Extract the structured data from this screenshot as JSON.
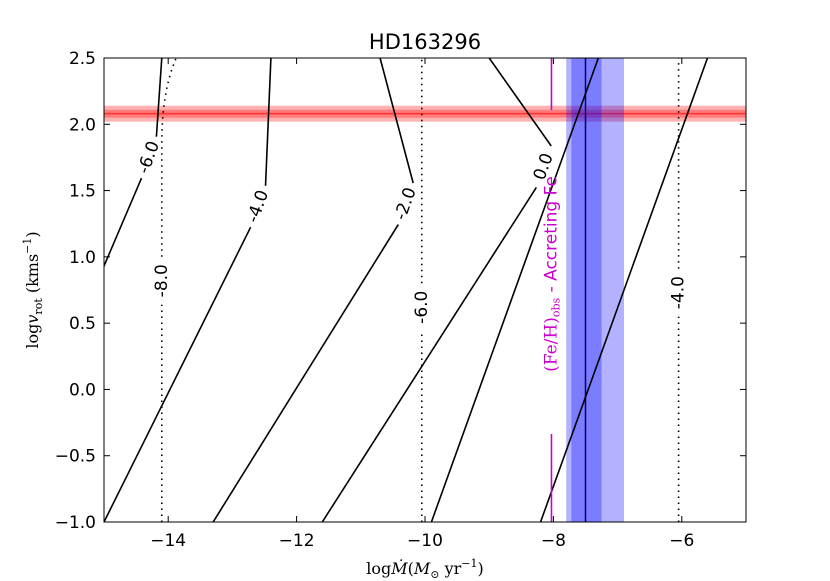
{
  "chart_data": {
    "type": "contour",
    "title": "HD163296",
    "xlabel": "log Ṁ(M⊙ yr⁻¹)",
    "ylabel": "log v_rot (kms⁻¹)",
    "xlim": [
      -15,
      -5
    ],
    "ylim": [
      -1.0,
      2.5
    ],
    "x_ticks": [
      -14,
      -12,
      -10,
      -8,
      -6
    ],
    "x_tick_labels": [
      "−14",
      "−12",
      "−10",
      "−8",
      "−6"
    ],
    "y_ticks": [
      -1.0,
      -0.5,
      0.0,
      0.5,
      1.0,
      1.5,
      2.0,
      2.5
    ],
    "y_tick_labels": [
      "−1.0",
      "−0.5",
      "0.0",
      "0.5",
      "1.0",
      "1.5",
      "2.0",
      "2.5"
    ],
    "grid": false,
    "solid_contours": [
      {
        "label": "-6.0",
        "x_at_ymin": -16.7,
        "x_at_ymax": -14.1,
        "label_x": -14.3,
        "label_y": 1.75
      },
      {
        "label": "-4.0",
        "x_at_ymin": -15.0,
        "x_at_ymax": -12.4,
        "label_x": -12.6,
        "label_y": 1.38
      },
      {
        "label": "-2.0",
        "x_at_ymin": -13.3,
        "x_at_ymax": -10.7,
        "label_x": -10.3,
        "label_y": 1.4
      },
      {
        "label": "0.0",
        "x_at_ymin": -11.6,
        "x_at_ymax": -9.0,
        "label_x": -8.15,
        "label_y": 1.68
      },
      {
        "label": "",
        "x_at_ymin": -9.9,
        "x_at_ymax": -7.3
      },
      {
        "label": "",
        "x_at_ymin": -8.2,
        "x_at_ymax": -5.6
      }
    ],
    "dotted_contours": [
      {
        "label": "-8.0",
        "x": -14.1,
        "label_y": 0.82,
        "x_top": -14.0
      },
      {
        "label": "-6.0",
        "x": -10.05,
        "label_y": 0.62
      },
      {
        "label": "-4.0",
        "x": -6.05,
        "label_y": 0.73
      }
    ],
    "vrot_band": {
      "center": 2.08,
      "inner": [
        2.05,
        2.11
      ],
      "outer": [
        2.02,
        2.14
      ],
      "color": "#ff0000"
    },
    "mdot_band": {
      "center": -7.5,
      "inner": [
        -7.72,
        -7.25
      ],
      "outer": [
        -7.8,
        -6.9
      ],
      "color": "#0000ff"
    },
    "feh_line": {
      "x": -8.03,
      "color": "#cc00cc",
      "label": "(Fe/H)obs - Accreting Fe",
      "label_main": "(Fe/H)",
      "label_sub": "obs",
      "label_rest": " - Accreting Fe"
    }
  }
}
